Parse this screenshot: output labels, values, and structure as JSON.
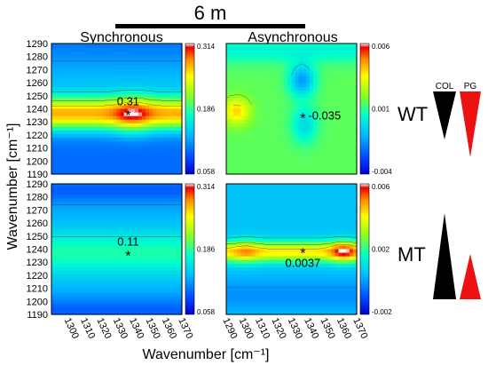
{
  "header": {
    "title": "6 m"
  },
  "columns": {
    "left": "Synchronous",
    "right": "Asynchronous"
  },
  "axes": {
    "ylabel": "Wavenumber [cm⁻¹]",
    "xlabel": "Wavenumber [cm⁻¹]",
    "yticks": [
      "1290",
      "1280",
      "1270",
      "1260",
      "1250",
      "1240",
      "1230",
      "1220",
      "1210",
      "1200",
      "1190"
    ],
    "xticks_sync": [
      "1300",
      "1310",
      "1320",
      "1330",
      "1340",
      "1350",
      "1360",
      "1370"
    ],
    "xticks_async": [
      "1290",
      "1300",
      "1310",
      "1320",
      "1330",
      "1340",
      "1350",
      "1360",
      "1370"
    ]
  },
  "rows": {
    "top": "WT",
    "bottom": "MT"
  },
  "legend_glyphs": {
    "col": "COL",
    "pg": "PG",
    "col_color": "#000000",
    "pg_color": "#ee1111"
  },
  "chart_data": [
    {
      "type": "heatmap",
      "name": "wt-sync",
      "row": "WT",
      "mode": "Synchronous",
      "xlim": [
        1290,
        1370
      ],
      "ylim": [
        1190,
        1290
      ],
      "colorbar": {
        "max": "0.314",
        "mid": "0.186",
        "min": "0.058",
        "vmin": 0.058,
        "vmax": 0.314
      },
      "peak": {
        "x": 1337,
        "y": 1236,
        "label": "0.31",
        "marker": "*"
      }
    },
    {
      "type": "heatmap",
      "name": "wt-async",
      "row": "WT",
      "mode": "Asynchronous",
      "xlim": [
        1290,
        1370
      ],
      "ylim": [
        1190,
        1290
      ],
      "colorbar": {
        "max": "0.006",
        "mid": "0.001",
        "min": "-0.004",
        "vmin": -0.004,
        "vmax": 0.006
      },
      "peak": {
        "x": 1337,
        "y": 1234,
        "label": "-0.035",
        "marker": "*"
      }
    },
    {
      "type": "heatmap",
      "name": "mt-sync",
      "row": "MT",
      "mode": "Synchronous",
      "xlim": [
        1290,
        1370
      ],
      "ylim": [
        1190,
        1290
      ],
      "colorbar": {
        "max": "0.314",
        "mid": "0.186",
        "min": "0.058",
        "vmin": 0.058,
        "vmax": 0.314
      },
      "peak": {
        "x": 1337,
        "y": 1236,
        "label": "0.11",
        "marker": "*"
      }
    },
    {
      "type": "heatmap",
      "name": "mt-async",
      "row": "MT",
      "mode": "Asynchronous",
      "xlim": [
        1290,
        1370
      ],
      "ylim": [
        1190,
        1290
      ],
      "colorbar": {
        "max": "0.006",
        "mid": "0.002",
        "min": "-0.002",
        "vmin": -0.002,
        "vmax": 0.006
      },
      "peak": {
        "x": 1337,
        "y": 1238,
        "label": "0.0037",
        "marker": "*"
      }
    }
  ]
}
